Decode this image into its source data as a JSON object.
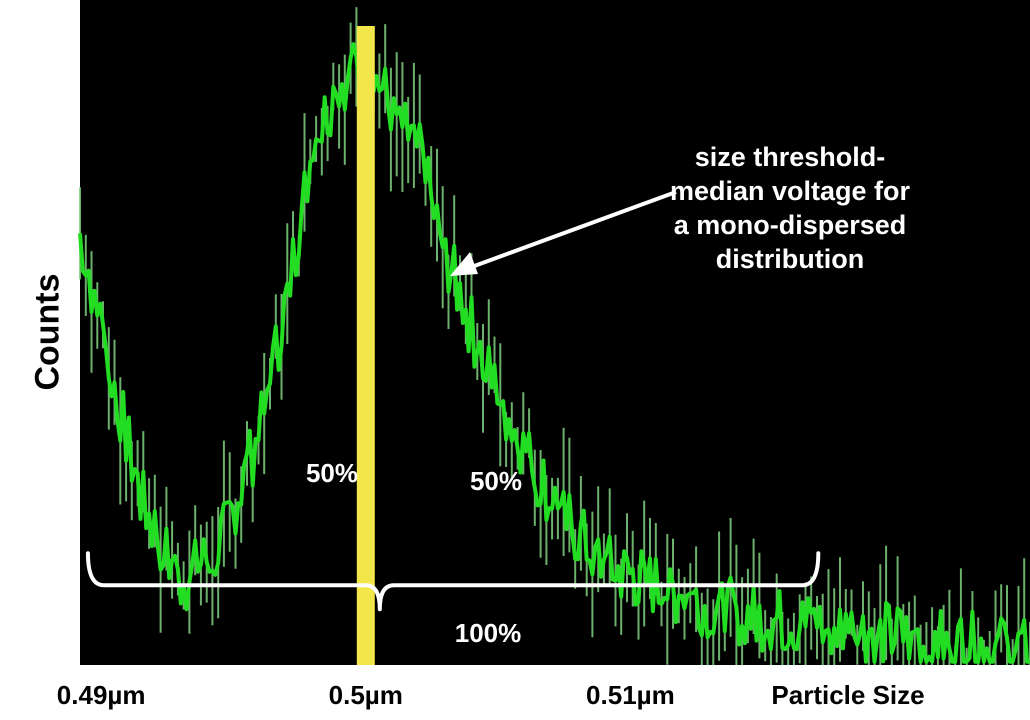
{
  "chart_data": {
    "type": "line",
    "title": "",
    "ylabel": "Counts",
    "xlabel": "Particle Size",
    "x_ticks": [
      {
        "label": "0.49µm",
        "value": 0.49
      },
      {
        "label": "0.5µm",
        "value": 0.5
      },
      {
        "label": "0.51µm",
        "value": 0.51
      }
    ],
    "xlim": [
      0.4892,
      0.5251
    ],
    "ylim": [
      0,
      100
    ],
    "grid": false,
    "background": "#000000",
    "series_color": "#22dd22",
    "threshold": {
      "value": 0.5,
      "color": "#f2e64a"
    },
    "profile": {
      "x": [
        0.4892,
        0.4905,
        0.4915,
        0.493,
        0.4945,
        0.496,
        0.497,
        0.498,
        0.499,
        0.5,
        0.501,
        0.502,
        0.503,
        0.5045,
        0.506,
        0.5075,
        0.509,
        0.511,
        0.513,
        0.515,
        0.517,
        0.519,
        0.521,
        0.523,
        0.5251
      ],
      "y": [
        65,
        42,
        25,
        12,
        18,
        35,
        55,
        78,
        88,
        90,
        84,
        77,
        62,
        45,
        32,
        22,
        15,
        12,
        9,
        7,
        6,
        5,
        4,
        3,
        2
      ]
    },
    "annotations": {
      "threshold_note": "size threshold-median voltage for a mono-dispersed distribution",
      "left_pct": "50%",
      "right_pct": "50%",
      "total_pct": "100%"
    },
    "bracket": {
      "x_from": 0.4895,
      "x_to": 0.5171,
      "y": 12
    }
  }
}
